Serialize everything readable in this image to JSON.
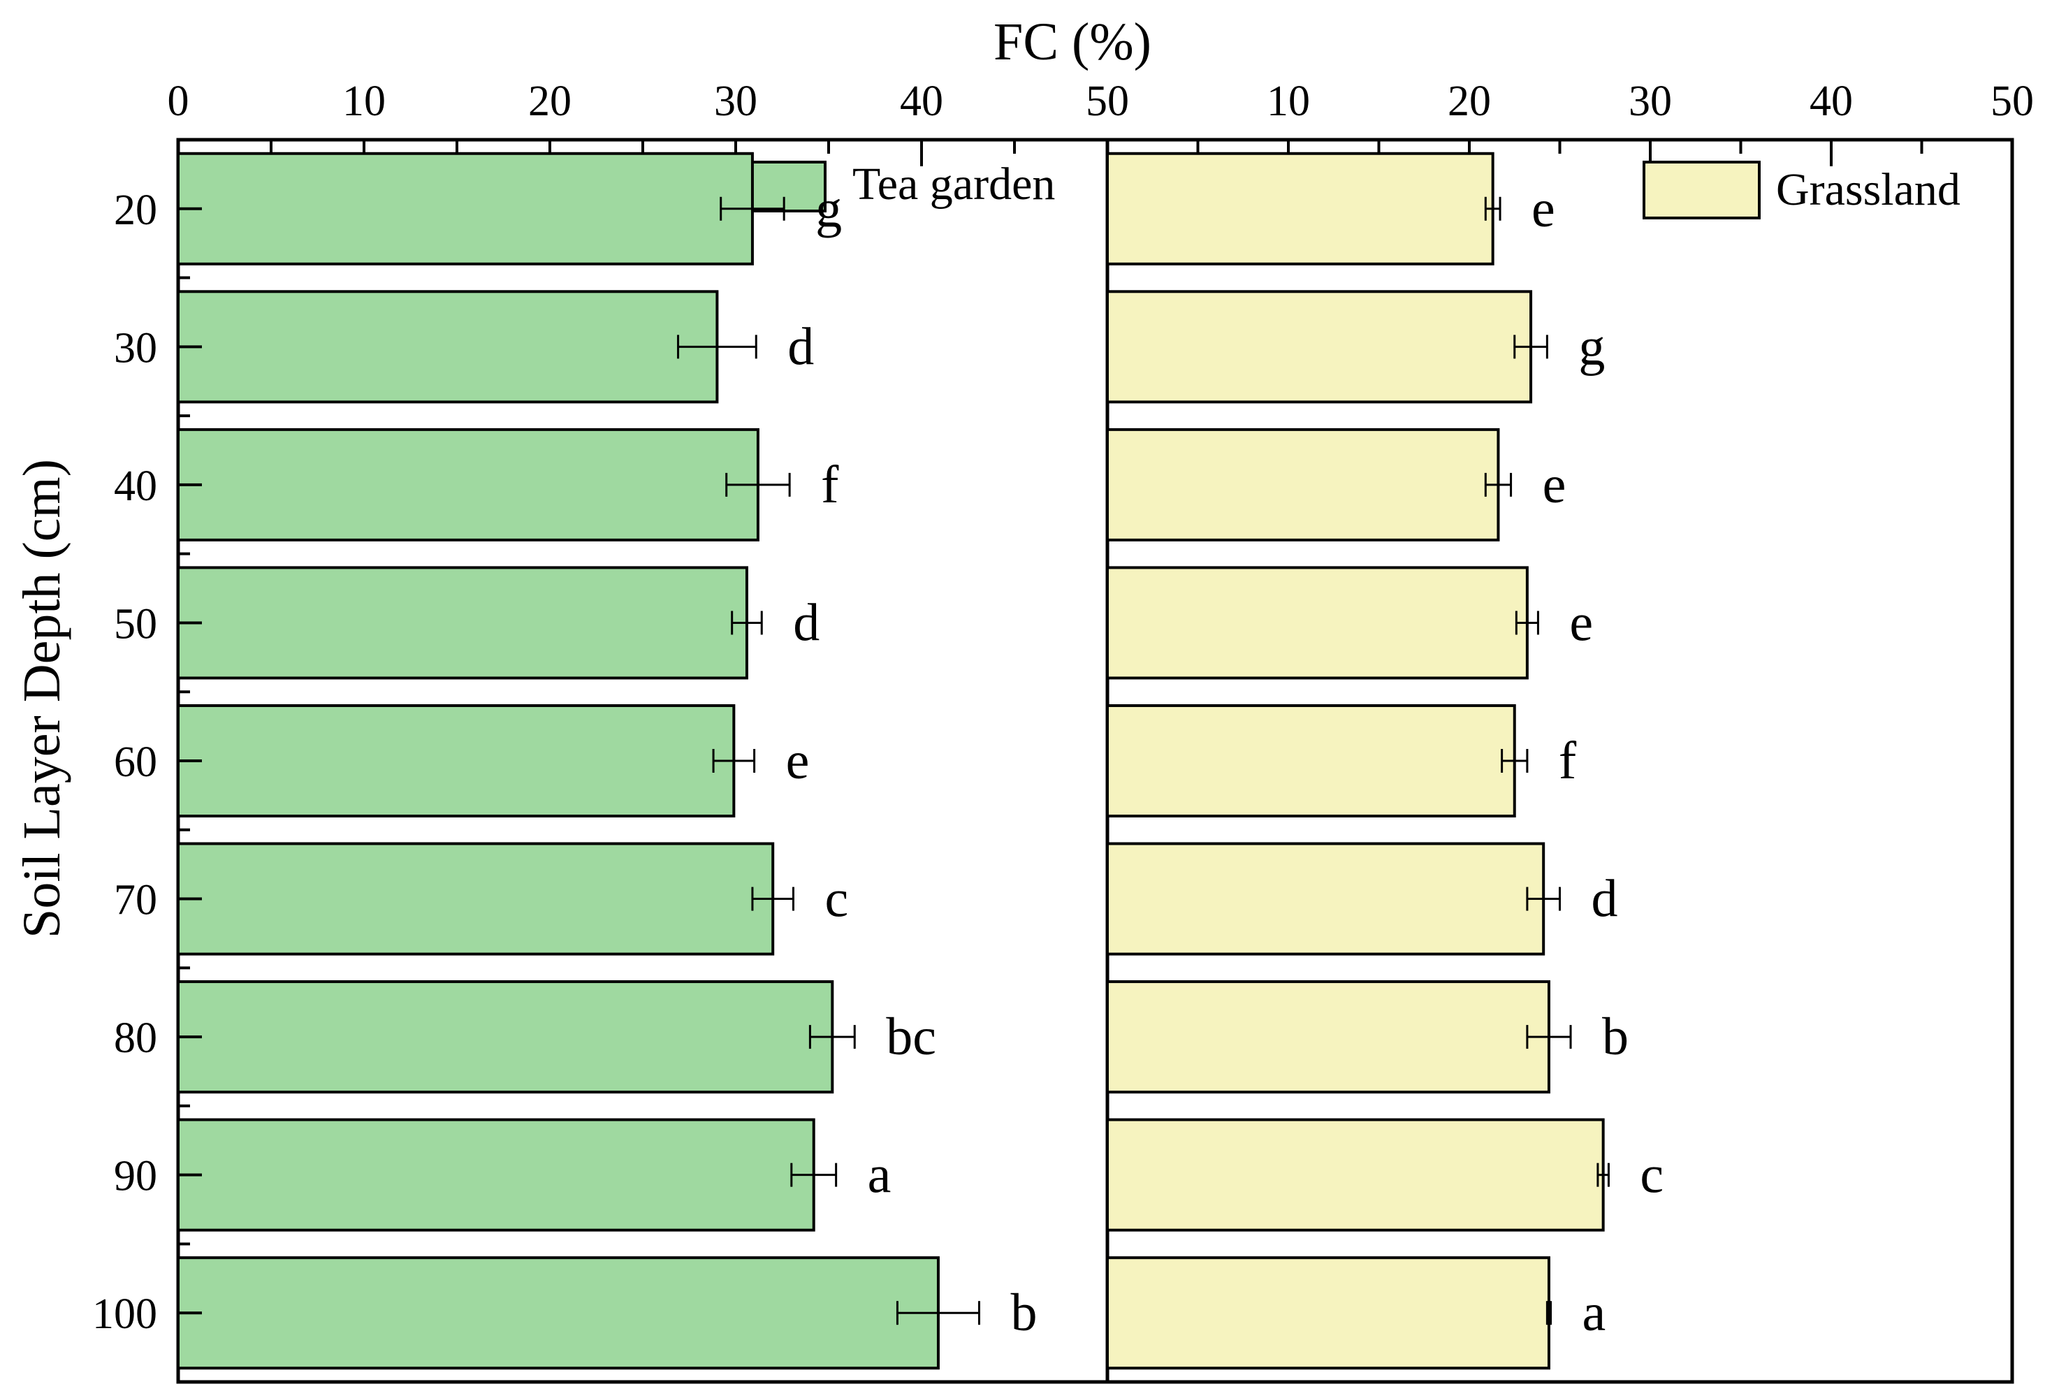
{
  "chart_data": {
    "type": "bar",
    "orientation": "horizontal",
    "title": "",
    "xlabel": "FC (%)",
    "ylabel": "Soil Layer Depth (cm)",
    "categories": [
      "20",
      "30",
      "40",
      "50",
      "60",
      "70",
      "80",
      "90",
      "100"
    ],
    "panels": [
      {
        "name": "Tea garden",
        "color": "#9fd9a0",
        "xlim": [
          0,
          50
        ],
        "xticks": [
          "0",
          "10",
          "20",
          "30",
          "40",
          "50"
        ],
        "values": [
          30.9,
          29.0,
          31.2,
          30.6,
          29.9,
          32.0,
          35.2,
          34.2,
          40.9
        ],
        "errors": [
          1.7,
          2.1,
          1.7,
          0.8,
          1.1,
          1.1,
          1.2,
          1.2,
          2.2
        ],
        "letters": [
          "g",
          "d",
          "f",
          "d",
          "e",
          "c",
          "bc",
          "a",
          "b"
        ]
      },
      {
        "name": "Grassland",
        "color": "#f6f3bf",
        "xlim": [
          0,
          50
        ],
        "xticks": [
          "10",
          "20",
          "30",
          "40",
          "50"
        ],
        "values": [
          21.3,
          23.4,
          21.6,
          23.2,
          22.5,
          24.1,
          24.4,
          27.4,
          24.4
        ],
        "errors": [
          0.4,
          0.9,
          0.7,
          0.6,
          0.7,
          0.9,
          1.2,
          0.3,
          0.1
        ],
        "letters": [
          "e",
          "g",
          "e",
          "e",
          "f",
          "d",
          "b",
          "c",
          "a"
        ]
      }
    ],
    "legend_position": "top-right of each panel",
    "grid": false
  }
}
